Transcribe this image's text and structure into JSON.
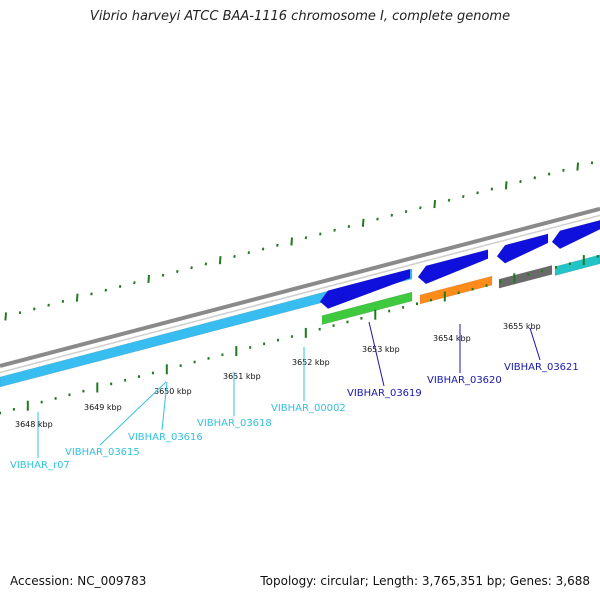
{
  "title": "Vibrio harveyi ATCC BAA-1116 chromosome I, complete genome",
  "footer": {
    "accession": "Accession: NC_009783",
    "summary": "Topology: circular; Length: 3,765,351 bp; Genes: 3,688"
  },
  "colors": {
    "background": "#ffffff",
    "backbone": "#8a8a8a",
    "tick": "#1f7a1f",
    "light_blue_gene": "#37bdf0",
    "dark_blue_gene": "#1010dd",
    "green_gene": "#3ec93e",
    "orange_gene": "#ff8c1a",
    "gray_gene": "#6a6a6a",
    "teal_gene": "#22c4c8",
    "light_label": "#33c0e0",
    "dark_label": "#1818b0"
  },
  "ticks": [
    {
      "label": "3648 kbp"
    },
    {
      "label": "3649 kbp"
    },
    {
      "label": "3650 kbp"
    },
    {
      "label": "3651 kbp"
    },
    {
      "label": "3652 kbp"
    },
    {
      "label": "3653 kbp"
    },
    {
      "label": "3654 kbp"
    },
    {
      "label": "3655 kbp"
    }
  ],
  "genes": [
    {
      "label": "VIBHAR_r07",
      "style": "light"
    },
    {
      "label": "VIBHAR_03615",
      "style": "light"
    },
    {
      "label": "VIBHAR_03616",
      "style": "light"
    },
    {
      "label": "VIBHAR_03618",
      "style": "light"
    },
    {
      "label": "VIBHAR_00002",
      "style": "light"
    },
    {
      "label": "VIBHAR_03619",
      "style": "dark"
    },
    {
      "label": "VIBHAR_03620",
      "style": "dark"
    },
    {
      "label": "VIBHAR_03621",
      "style": "dark"
    }
  ]
}
